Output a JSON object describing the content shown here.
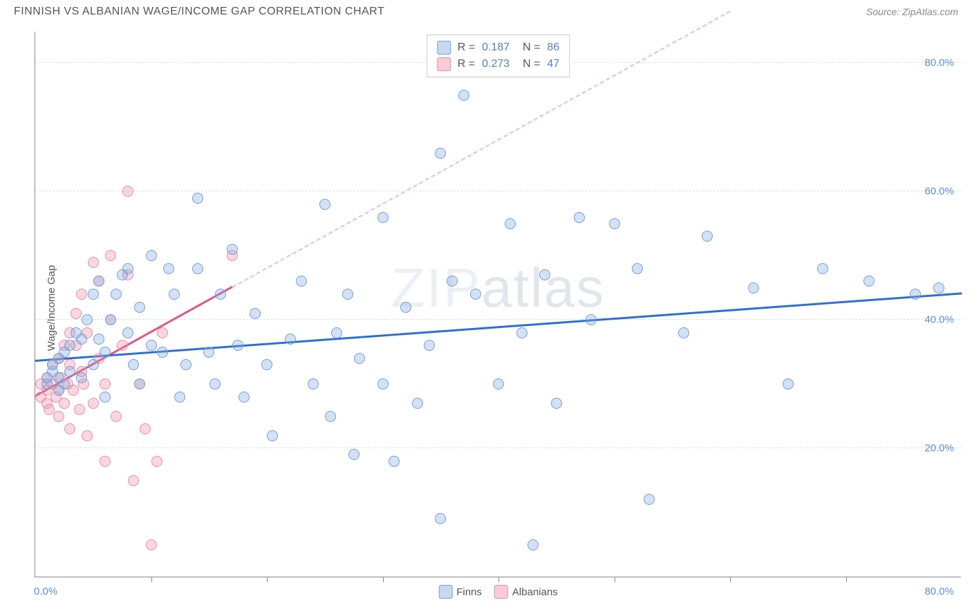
{
  "title": "FINNISH VS ALBANIAN WAGE/INCOME GAP CORRELATION CHART",
  "source": "Source: ZipAtlas.com",
  "watermark": "ZIPatlas",
  "chart": {
    "type": "scatter",
    "ylabel": "Wage/Income Gap",
    "xlim": [
      0,
      80
    ],
    "ylim": [
      0,
      85
    ],
    "x_ticks_minor_step": 10,
    "y_gridlines": [
      20,
      40,
      60,
      80
    ],
    "xtick_labels": {
      "min": "0.0%",
      "max": "80.0%"
    },
    "ytick_labels": [
      "20.0%",
      "40.0%",
      "60.0%",
      "80.0%"
    ],
    "background_color": "#ffffff",
    "grid_color": "#dddddd",
    "axis_color": "#888888",
    "series": {
      "finns": {
        "label": "Finns",
        "color_fill": "rgba(130,170,225,0.35)",
        "color_stroke": "#6f9fd8",
        "marker_size": 16,
        "R": "0.187",
        "N": "86",
        "trend": {
          "x1": 0,
          "y1": 33.5,
          "x2": 80,
          "y2": 44,
          "color": "#2b6fd4",
          "width": 2.5,
          "dash_extent_x": 80
        },
        "points": [
          [
            1,
            30
          ],
          [
            1,
            31
          ],
          [
            1.5,
            32
          ],
          [
            1.5,
            33
          ],
          [
            2,
            31
          ],
          [
            2,
            34
          ],
          [
            2,
            29
          ],
          [
            2.5,
            35
          ],
          [
            2.5,
            30
          ],
          [
            3,
            36
          ],
          [
            3,
            32
          ],
          [
            3.5,
            38
          ],
          [
            4,
            31
          ],
          [
            4,
            37
          ],
          [
            4.5,
            40
          ],
          [
            5,
            44
          ],
          [
            5,
            33
          ],
          [
            5.5,
            37
          ],
          [
            5.5,
            46
          ],
          [
            6,
            28
          ],
          [
            6,
            35
          ],
          [
            6.5,
            40
          ],
          [
            7,
            44
          ],
          [
            7.5,
            47
          ],
          [
            8,
            38
          ],
          [
            8,
            48
          ],
          [
            8.5,
            33
          ],
          [
            9,
            30
          ],
          [
            9,
            42
          ],
          [
            10,
            36
          ],
          [
            10,
            50
          ],
          [
            11,
            35
          ],
          [
            11.5,
            48
          ],
          [
            12,
            44
          ],
          [
            12.5,
            28
          ],
          [
            13,
            33
          ],
          [
            14,
            59
          ],
          [
            14,
            48
          ],
          [
            15,
            35
          ],
          [
            15.5,
            30
          ],
          [
            16,
            44
          ],
          [
            17,
            51
          ],
          [
            17.5,
            36
          ],
          [
            18,
            28
          ],
          [
            19,
            41
          ],
          [
            20,
            33
          ],
          [
            20.5,
            22
          ],
          [
            22,
            37
          ],
          [
            23,
            46
          ],
          [
            24,
            30
          ],
          [
            25,
            58
          ],
          [
            25.5,
            25
          ],
          [
            26,
            38
          ],
          [
            27,
            44
          ],
          [
            27.5,
            19
          ],
          [
            28,
            34
          ],
          [
            30,
            30
          ],
          [
            30,
            56
          ],
          [
            31,
            18
          ],
          [
            32,
            42
          ],
          [
            33,
            27
          ],
          [
            34,
            36
          ],
          [
            35,
            66
          ],
          [
            35,
            9
          ],
          [
            36,
            46
          ],
          [
            37,
            75
          ],
          [
            38,
            44
          ],
          [
            40,
            30
          ],
          [
            41,
            55
          ],
          [
            42,
            38
          ],
          [
            43,
            5
          ],
          [
            44,
            47
          ],
          [
            45,
            27
          ],
          [
            47,
            56
          ],
          [
            48,
            40
          ],
          [
            50,
            55
          ],
          [
            52,
            48
          ],
          [
            53,
            12
          ],
          [
            56,
            38
          ],
          [
            58,
            53
          ],
          [
            62,
            45
          ],
          [
            65,
            30
          ],
          [
            68,
            48
          ],
          [
            72,
            46
          ],
          [
            76,
            44
          ],
          [
            78,
            45
          ]
        ]
      },
      "albanians": {
        "label": "Albanians",
        "color_fill": "rgba(240,140,165,0.35)",
        "color_stroke": "#e88ba5",
        "marker_size": 16,
        "R": "0.273",
        "N": "47",
        "trend": {
          "x1": 0,
          "y1": 28,
          "x2": 17,
          "y2": 45,
          "color": "#e0567f",
          "width": 2.5,
          "dash_color": "#f4b8c8",
          "dash_extent_x": 60
        },
        "points": [
          [
            0.5,
            28
          ],
          [
            0.5,
            30
          ],
          [
            1,
            27
          ],
          [
            1,
            29
          ],
          [
            1,
            31
          ],
          [
            1.2,
            26
          ],
          [
            1.5,
            30
          ],
          [
            1.5,
            33
          ],
          [
            1.8,
            28
          ],
          [
            2,
            25
          ],
          [
            2,
            29
          ],
          [
            2,
            34
          ],
          [
            2.2,
            31
          ],
          [
            2.5,
            27
          ],
          [
            2.5,
            36
          ],
          [
            2.8,
            30
          ],
          [
            3,
            23
          ],
          [
            3,
            33
          ],
          [
            3,
            38
          ],
          [
            3.3,
            29
          ],
          [
            3.5,
            36
          ],
          [
            3.5,
            41
          ],
          [
            3.8,
            26
          ],
          [
            4,
            32
          ],
          [
            4,
            44
          ],
          [
            4.2,
            30
          ],
          [
            4.5,
            22
          ],
          [
            4.5,
            38
          ],
          [
            5,
            49
          ],
          [
            5,
            27
          ],
          [
            5.5,
            34
          ],
          [
            5.5,
            46
          ],
          [
            6,
            30
          ],
          [
            6,
            18
          ],
          [
            6.5,
            40
          ],
          [
            6.5,
            50
          ],
          [
            7,
            25
          ],
          [
            7.5,
            36
          ],
          [
            8,
            47
          ],
          [
            8,
            60
          ],
          [
            8.5,
            15
          ],
          [
            9,
            30
          ],
          [
            9.5,
            23
          ],
          [
            10,
            5
          ],
          [
            10.5,
            18
          ],
          [
            11,
            38
          ],
          [
            17,
            50
          ]
        ]
      }
    },
    "legend_position": "bottom-center",
    "stats_box_position": "top-center",
    "title_fontsize": 16,
    "label_fontsize": 15,
    "tick_fontsize": 15,
    "tick_color": "#5b8dd6"
  }
}
